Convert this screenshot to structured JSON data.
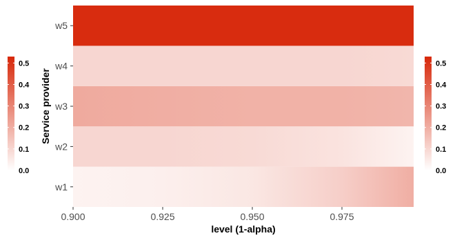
{
  "chart_data": {
    "type": "heatmap",
    "title": "",
    "xlabel": "level (1-alpha)",
    "ylabel": "Service provider",
    "x_ticks": [
      "0.900",
      "0.925",
      "0.950",
      "0.975"
    ],
    "x_tick_values": [
      0.9,
      0.925,
      0.95,
      0.975
    ],
    "xlim": [
      0.9,
      0.995
    ],
    "rows": [
      "w1",
      "w2",
      "w3",
      "w4",
      "w5"
    ],
    "x": [
      0.9,
      0.925,
      0.95,
      0.975,
      0.995
    ],
    "series": [
      {
        "name": "w1",
        "values": [
          0.03,
          0.04,
          0.06,
          0.12,
          0.2
        ]
      },
      {
        "name": "w2",
        "values": [
          0.1,
          0.1,
          0.09,
          0.07,
          0.03
        ]
      },
      {
        "name": "w3",
        "values": [
          0.21,
          0.2,
          0.19,
          0.19,
          0.18
        ]
      },
      {
        "name": "w4",
        "values": [
          0.1,
          0.1,
          0.1,
          0.1,
          0.09
        ]
      },
      {
        "name": "w5",
        "values": [
          0.52,
          0.52,
          0.52,
          0.52,
          0.52
        ]
      }
    ],
    "legend": {
      "placement": "left and right",
      "min": 0.0,
      "max": 0.53,
      "ticks": [
        "0.0",
        "0.1",
        "0.2",
        "0.3",
        "0.4",
        "0.5"
      ],
      "tick_values": [
        0.0,
        0.1,
        0.2,
        0.3,
        0.4,
        0.5
      ]
    },
    "colors": {
      "low": "#ffffff",
      "high": "#d7280a",
      "axis_text": "#4d4d4d"
    },
    "grid": false
  }
}
